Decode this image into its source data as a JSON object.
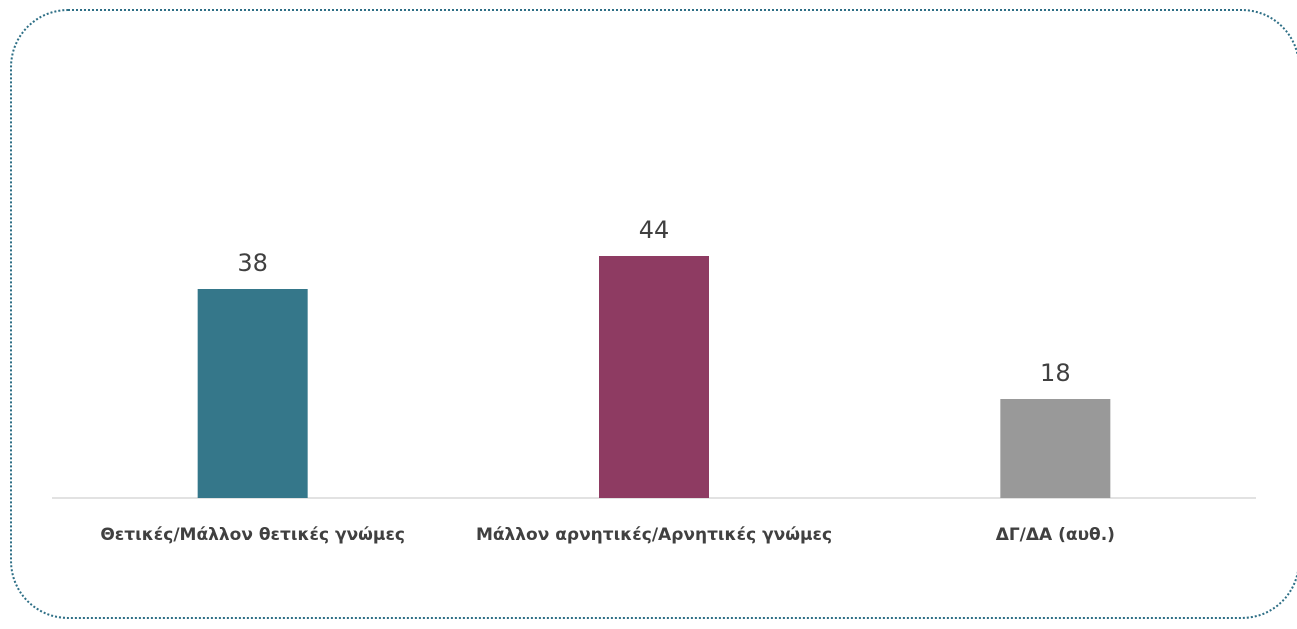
{
  "chart_data": {
    "type": "bar",
    "categories": [
      "Θετικές/Μάλλον θετικές γνώμες",
      "Μάλλον αρνητικές/Αρνητικές γνώμες",
      "ΔΓ/ΔΑ (αυθ.)"
    ],
    "values": [
      38,
      44,
      18
    ],
    "data_labels": [
      "38",
      "44",
      "18"
    ],
    "colors": [
      "#35778a",
      "#8e3b62",
      "#999999"
    ],
    "title": "",
    "xlabel": "",
    "ylabel": "",
    "ylim": [
      0,
      56
    ],
    "grid": false,
    "legend": "none"
  },
  "frame": {
    "border_color": "#2e6f86",
    "style": "dotted-rounded"
  }
}
